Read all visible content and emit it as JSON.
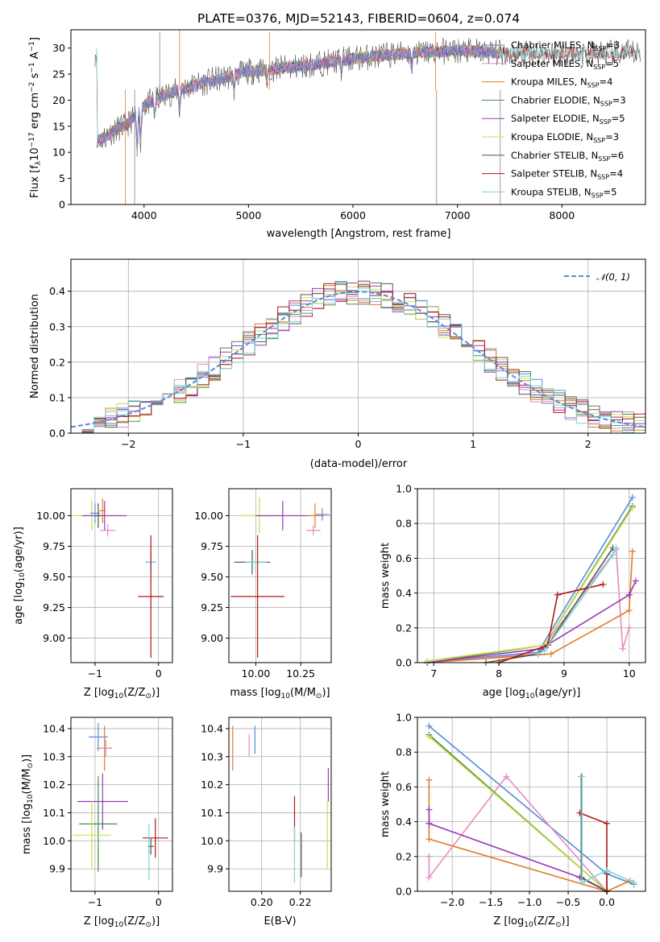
{
  "colors": {
    "chabrier_miles": "#5b8bd8",
    "salpeter_miles": "#e58bc0",
    "kroupa_miles": "#e47a28",
    "chabrier_elodie": "#4a8a4a",
    "salpeter_elodie": "#9a3ab8",
    "kroupa_elodie": "#c9e04a",
    "chabrier_stelib": "#555555",
    "salpeter_stelib": "#b01818",
    "kroupa_stelib": "#78d6d6",
    "normal": "#5b8bd8"
  },
  "chart_data": [
    {
      "id": "spectrum",
      "type": "line",
      "title": "PLATE=0376, MJD=52143, FIBERID=0604, z=0.074",
      "xlabel": "wavelength [Angstrom, rest frame]",
      "ylabel": "Flux [f",
      "ylabel_sub": "λ",
      "ylabel_rest": "10",
      "ylabel_sup1": "−17",
      "ylabel_mid": " erg cm",
      "ylabel_sup2": "−2",
      "ylabel_s": " s",
      "ylabel_sup3": "−1",
      "ylabel_a": " A",
      "ylabel_sup4": "−1",
      "ylabel_end": "]",
      "xlim": [
        3300,
        8800
      ],
      "ylim": [
        0,
        33.5
      ],
      "xticks": [
        "4000",
        "5000",
        "6000",
        "7000",
        "8000"
      ],
      "xtick_values": [
        4000,
        5000,
        6000,
        7000,
        8000
      ],
      "yticks": [
        "0",
        "5",
        "10",
        "15",
        "20",
        "25",
        "30"
      ],
      "ytick_values": [
        0,
        5,
        10,
        15,
        20,
        25,
        30
      ],
      "continuum": [
        [
          3550,
          12
        ],
        [
          3700,
          14
        ],
        [
          3850,
          15.5
        ],
        [
          4000,
          19
        ],
        [
          4200,
          21
        ],
        [
          4500,
          23
        ],
        [
          5000,
          25.5
        ],
        [
          5500,
          26.5
        ],
        [
          6000,
          28
        ],
        [
          6500,
          29
        ],
        [
          7000,
          29.5
        ],
        [
          7500,
          29
        ],
        [
          8000,
          29
        ],
        [
          8500,
          29
        ]
      ],
      "legend": [
        {
          "key": "chabrier_miles",
          "text": "Chabrier MILES, N",
          "sub": "SSP",
          "val": "=3"
        },
        {
          "key": "salpeter_miles",
          "text": "Salpeter MILES, N",
          "sub": "SSP",
          "val": "=5"
        },
        {
          "key": "kroupa_miles",
          "text": "Kroupa MILES, N",
          "sub": "SSP",
          "val": "=4"
        },
        {
          "key": "chabrier_elodie",
          "text": "Chabrier ELODIE, N",
          "sub": "SSP",
          "val": "=3"
        },
        {
          "key": "salpeter_elodie",
          "text": "Salpeter ELODIE, N",
          "sub": "SSP",
          "val": "=5"
        },
        {
          "key": "kroupa_elodie",
          "text": "Kroupa ELODIE, N",
          "sub": "SSP",
          "val": "=3"
        },
        {
          "key": "chabrier_stelib",
          "text": "Chabrier STELIB, N",
          "sub": "SSP",
          "val": "=6"
        },
        {
          "key": "salpeter_stelib",
          "text": "Salpeter STELIB, N",
          "sub": "SSP",
          "val": "=4"
        },
        {
          "key": "kroupa_stelib",
          "text": "Kroupa STELIB, N",
          "sub": "SSP",
          "val": "=5"
        }
      ]
    },
    {
      "id": "residuals",
      "type": "histogram",
      "xlabel": "(data-model)/error",
      "ylabel": "Normed distribution",
      "xlim": [
        -2.5,
        2.5
      ],
      "ylim": [
        0,
        0.49
      ],
      "xticks": [
        "−2",
        "−1",
        "0",
        "1",
        "2"
      ],
      "xtick_values": [
        -2,
        -1,
        0,
        1,
        2
      ],
      "yticks": [
        "0.0",
        "0.1",
        "0.2",
        "0.3",
        "0.4"
      ],
      "ytick_values": [
        0,
        0.1,
        0.2,
        0.3,
        0.4
      ],
      "legend": "𝒩(0, 1)",
      "bin_width": 0.1,
      "grid": true
    },
    {
      "id": "age_vs_z",
      "type": "errorbar",
      "xlabel": "Z [log",
      "xlabel_sub": "10",
      "xlabel_rest": "(Z/Z",
      "xlabel_sub2": "⊙",
      "xlabel_end": ")]",
      "ylabel": "age  [log",
      "ylabel_sub": "10",
      "ylabel_rest": "(age/yr)]",
      "xlim": [
        -1.38,
        0.22
      ],
      "ylim": [
        8.8,
        10.22
      ],
      "xticks": [
        "−1",
        "0"
      ],
      "xtick_values": [
        -1,
        0
      ],
      "yticks": [
        "9.00",
        "9.25",
        "9.50",
        "9.75",
        "10.00"
      ],
      "ytick_values": [
        9,
        9.25,
        9.5,
        9.75,
        10
      ],
      "points": [
        {
          "key": "kroupa_elodie",
          "x": -1.05,
          "y": 10.0,
          "xe": 0.25,
          "ye": 0.12
        },
        {
          "key": "chabrier_miles",
          "x": -1.0,
          "y": 10.02,
          "xe": 0.08,
          "ye": 0.08
        },
        {
          "key": "salpeter_elodie",
          "x": -0.85,
          "y": 10.0,
          "xe": 0.35,
          "ye": 0.12
        },
        {
          "key": "chabrier_stelib",
          "x": -0.95,
          "y": 10.0,
          "xe": 0.05,
          "ye": 0.1
        },
        {
          "key": "salpeter_miles",
          "x": -0.8,
          "y": 9.88,
          "xe": 0.12,
          "ye": 0.05
        },
        {
          "key": "kroupa_miles",
          "x": -0.88,
          "y": 10.04,
          "xe": 0.05,
          "ye": 0.1
        },
        {
          "key": "chabrier_miles",
          "x": -0.12,
          "y": 9.62,
          "xe": 0.08,
          "ye": 0.08
        },
        {
          "key": "kroupa_stelib",
          "x": -0.12,
          "y": 9.62,
          "xe": 0.06,
          "ye": 0.1
        },
        {
          "key": "salpeter_stelib",
          "x": -0.12,
          "y": 9.34,
          "xe": 0.2,
          "ye": 0.5
        }
      ]
    },
    {
      "id": "age_vs_mass",
      "type": "errorbar",
      "xlabel": "mass [log",
      "xlabel_sub": "10",
      "xlabel_rest": "(M/M",
      "xlabel_sub2": "⊙",
      "xlabel_end": ")]",
      "xlim": [
        9.85,
        10.42
      ],
      "ylim": [
        8.8,
        10.22
      ],
      "xticks": [
        "10.00",
        "10.25"
      ],
      "xtick_values": [
        10,
        10.25
      ],
      "yticks": [
        "9.00",
        "9.25",
        "9.50",
        "9.75",
        "10.00"
      ],
      "ytick_values": [
        9,
        9.25,
        9.5,
        9.75,
        10
      ],
      "points": [
        {
          "key": "kroupa_elodie",
          "x": 10.02,
          "y": 10.0,
          "xe": 0.1,
          "ye": 0.15
        },
        {
          "key": "salpeter_elodie",
          "x": 10.15,
          "y": 10.0,
          "xe": 0.15,
          "ye": 0.12
        },
        {
          "key": "chabrier_miles",
          "x": 10.37,
          "y": 10.01,
          "xe": 0.04,
          "ye": 0.05
        },
        {
          "key": "kroupa_miles",
          "x": 10.33,
          "y": 10.0,
          "xe": 0.05,
          "ye": 0.1
        },
        {
          "key": "salpeter_miles",
          "x": 10.32,
          "y": 9.88,
          "xe": 0.04,
          "ye": 0.04
        },
        {
          "key": "chabrier_stelib",
          "x": 9.98,
          "y": 9.62,
          "xe": 0.1,
          "ye": 0.1
        },
        {
          "key": "kroupa_stelib",
          "x": 10.0,
          "y": 9.62,
          "xe": 0.06,
          "ye": 0.08
        },
        {
          "key": "salpeter_stelib",
          "x": 10.01,
          "y": 9.34,
          "xe": 0.15,
          "ye": 0.5
        }
      ]
    },
    {
      "id": "weight_vs_age",
      "type": "line",
      "xlabel": "age  [log",
      "xlabel_sub": "10",
      "xlabel_rest": "(age/yr)]",
      "ylabel": "mass weight",
      "xlim": [
        6.75,
        10.25
      ],
      "ylim": [
        0,
        1.0
      ],
      "xticks": [
        "7",
        "8",
        "9",
        "10"
      ],
      "xtick_values": [
        7,
        8,
        9,
        10
      ],
      "yticks": [
        "0.0",
        "0.2",
        "0.4",
        "0.6",
        "0.8",
        "1.0"
      ],
      "ytick_values": [
        0,
        0.2,
        0.4,
        0.6,
        0.8,
        1.0
      ],
      "series": [
        {
          "key": "chabrier_miles",
          "x": [
            6.9,
            8.6,
            10.05
          ],
          "y": [
            0,
            0.06,
            0.95
          ]
        },
        {
          "key": "salpeter_miles",
          "x": [
            6.9,
            8.6,
            9.8,
            9.9,
            10.0
          ],
          "y": [
            0,
            0.05,
            0.65,
            0.08,
            0.2
          ]
        },
        {
          "key": "kroupa_miles",
          "x": [
            6.9,
            8.8,
            10.0,
            10.05
          ],
          "y": [
            0,
            0.05,
            0.3,
            0.64
          ]
        },
        {
          "key": "chabrier_elodie",
          "x": [
            6.9,
            8.7,
            10.05
          ],
          "y": [
            0,
            0.1,
            0.9
          ]
        },
        {
          "key": "salpeter_elodie",
          "x": [
            6.9,
            8.65,
            10.0,
            10.1
          ],
          "y": [
            0,
            0.08,
            0.39,
            0.47
          ]
        },
        {
          "key": "kroupa_elodie",
          "x": [
            6.9,
            8.7,
            10.05
          ],
          "y": [
            0.01,
            0.1,
            0.89
          ]
        },
        {
          "key": "chabrier_stelib",
          "x": [
            7.8,
            8.6,
            8.75,
            9.75
          ],
          "y": [
            0,
            0.05,
            0.1,
            0.66
          ]
        },
        {
          "key": "salpeter_stelib",
          "x": [
            8.0,
            8.75,
            8.9,
            9.6
          ],
          "y": [
            0,
            0.1,
            0.39,
            0.45
          ]
        },
        {
          "key": "kroupa_stelib",
          "x": [
            8.6,
            8.7,
            9.75,
            9.8
          ],
          "y": [
            0.05,
            0.07,
            0.62,
            0.66
          ]
        }
      ]
    },
    {
      "id": "mass_vs_z",
      "type": "errorbar",
      "xlabel": "Z [log",
      "xlabel_sub": "10",
      "xlabel_rest": "(Z/Z",
      "xlabel_sub2": "⊙",
      "xlabel_end": ")]",
      "ylabel": "mass [log",
      "ylabel_sub": "10",
      "ylabel_rest": "(M/M",
      "ylabel_sub2": "⊙",
      "ylabel_end": ")]",
      "xlim": [
        -1.38,
        0.22
      ],
      "ylim": [
        9.82,
        10.44
      ],
      "xticks": [
        "−1",
        "0"
      ],
      "xtick_values": [
        -1,
        0
      ],
      "yticks": [
        "9.9",
        "10.0",
        "10.1",
        "10.2",
        "10.3",
        "10.4"
      ],
      "ytick_values": [
        9.9,
        10.0,
        10.1,
        10.2,
        10.3,
        10.4
      ],
      "points": [
        {
          "key": "chabrier_miles",
          "x": -0.95,
          "y": 10.37,
          "xe": 0.15,
          "ye": 0.05
        },
        {
          "key": "kroupa_miles",
          "x": -0.85,
          "y": 10.33,
          "xe": 0.12,
          "ye": 0.08
        },
        {
          "key": "salpeter_miles",
          "x": -0.83,
          "y": 10.33,
          "xe": 0.08,
          "ye": 0.03
        },
        {
          "key": "salpeter_elodie",
          "x": -0.88,
          "y": 10.14,
          "xe": 0.4,
          "ye": 0.1
        },
        {
          "key": "chabrier_elodie",
          "x": -0.95,
          "y": 10.06,
          "xe": 0.3,
          "ye": 0.17
        },
        {
          "key": "kroupa_elodie",
          "x": -1.05,
          "y": 10.02,
          "xe": 0.3,
          "ye": 0.12
        },
        {
          "key": "salpeter_stelib",
          "x": -0.05,
          "y": 10.01,
          "xe": 0.2,
          "ye": 0.07
        },
        {
          "key": "chabrier_stelib",
          "x": -0.12,
          "y": 9.98,
          "xe": 0.05,
          "ye": 0.03
        },
        {
          "key": "kroupa_stelib",
          "x": -0.15,
          "y": 9.96,
          "xe": 0.02,
          "ye": 0.1
        }
      ]
    },
    {
      "id": "mass_vs_ebv",
      "type": "errorbar",
      "xlabel": "E(B-V)",
      "xlim": [
        0.183,
        0.236
      ],
      "ylim": [
        9.82,
        10.44
      ],
      "xticks": [
        "0.20",
        "0.22"
      ],
      "xtick_values": [
        0.2,
        0.22
      ],
      "yticks": [
        "9.9",
        "10.0",
        "10.1",
        "10.2",
        "10.3",
        "10.4"
      ],
      "ytick_values": [
        9.9,
        10.0,
        10.1,
        10.2,
        10.3,
        10.4
      ],
      "points": [
        {
          "key": "kroupa_miles",
          "x": 0.185,
          "y": 10.33,
          "xe": 0,
          "ye": 0.08
        },
        {
          "key": "salpeter_miles",
          "x": 0.1935,
          "y": 10.34,
          "xe": 0,
          "ye": 0.04
        },
        {
          "key": "chabrier_miles",
          "x": 0.1965,
          "y": 10.36,
          "xe": 0,
          "ye": 0.05
        },
        {
          "key": "salpeter_stelib",
          "x": 0.217,
          "y": 10.08,
          "xe": 0,
          "ye": 0.08
        },
        {
          "key": "kroupa_stelib",
          "x": 0.217,
          "y": 9.95,
          "xe": 0,
          "ye": 0.1
        },
        {
          "key": "chabrier_stelib",
          "x": 0.2205,
          "y": 9.95,
          "xe": 0,
          "ye": 0.08
        },
        {
          "key": "salpeter_elodie",
          "x": 0.2345,
          "y": 10.2,
          "xe": 0,
          "ye": 0.06
        },
        {
          "key": "kroupa_elodie",
          "x": 0.234,
          "y": 10.02,
          "xe": 0,
          "ye": 0.12
        }
      ]
    },
    {
      "id": "weight_vs_z",
      "type": "line",
      "xlabel": "Z [log",
      "xlabel_sub": "10",
      "xlabel_rest": "(Z/Z",
      "xlabel_sub2": "⊙",
      "xlabel_end": ")]",
      "ylabel": "mass weight",
      "xlim": [
        -2.45,
        0.5
      ],
      "ylim": [
        0,
        1.0
      ],
      "xticks": [
        "−2.0",
        "−1.5",
        "−1.0",
        "−0.5",
        "0.0"
      ],
      "xtick_values": [
        -2,
        -1.5,
        -1,
        -0.5,
        0
      ],
      "yticks": [
        "0.0",
        "0.2",
        "0.4",
        "0.6",
        "0.8",
        "1.0"
      ],
      "ytick_values": [
        0,
        0.2,
        0.4,
        0.6,
        0.8,
        1.0
      ],
      "series": [
        {
          "key": "chabrier_miles",
          "x": [
            -2.3,
            0.0,
            0.35
          ],
          "y": [
            0.95,
            0.1,
            0.04
          ]
        },
        {
          "key": "salpeter_miles",
          "x": [
            -2.3,
            -2.3,
            -1.3,
            0.0
          ],
          "y": [
            0.2,
            0.08,
            0.66,
            0.0
          ]
        },
        {
          "key": "kroupa_miles",
          "x": [
            -2.3,
            -2.3,
            0.0,
            0.3
          ],
          "y": [
            0.64,
            0.3,
            0.0,
            0.06
          ]
        },
        {
          "key": "chabrier_elodie",
          "x": [
            -2.3,
            0.0
          ],
          "y": [
            0.9,
            0.0
          ]
        },
        {
          "key": "salpeter_elodie",
          "x": [
            -2.3,
            -2.3,
            -0.35,
            0.0
          ],
          "y": [
            0.47,
            0.39,
            0.08,
            0.0
          ]
        },
        {
          "key": "kroupa_elodie",
          "x": [
            -2.3,
            0.0
          ],
          "y": [
            0.89,
            0.0
          ]
        },
        {
          "key": "chabrier_stelib",
          "x": [
            -0.33,
            -0.33,
            0.0,
            0.0
          ],
          "y": [
            0.66,
            0.08,
            0.0,
            0.1
          ]
        },
        {
          "key": "salpeter_stelib",
          "x": [
            -0.35,
            0.0,
            0.0
          ],
          "y": [
            0.45,
            0.39,
            0.0
          ]
        },
        {
          "key": "kroupa_stelib",
          "x": [
            -0.32,
            -0.32,
            0.0,
            0.35
          ],
          "y": [
            0.66,
            0.05,
            0.12,
            0.05
          ]
        }
      ]
    }
  ]
}
